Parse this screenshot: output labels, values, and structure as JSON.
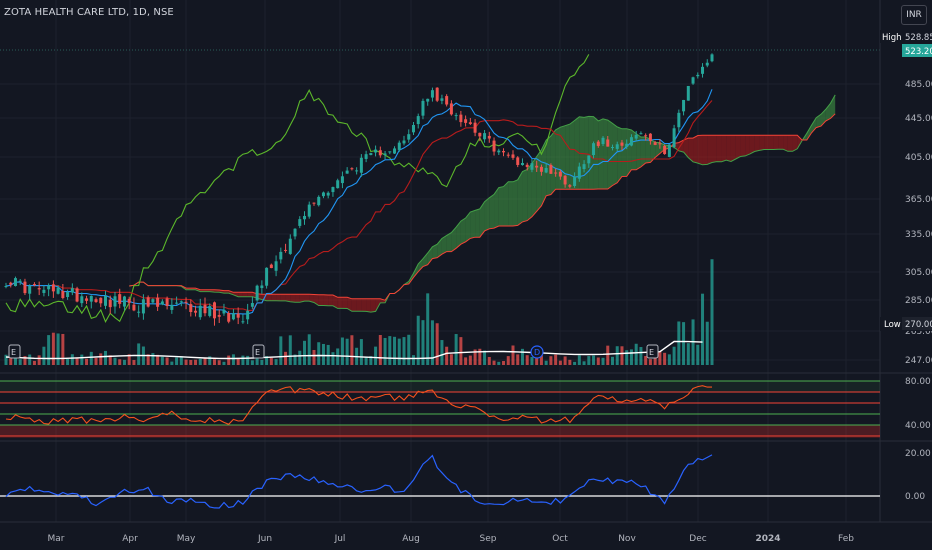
{
  "title": "ZOTA HEALTH CARE LTD, 1D, NSE",
  "currency": "INR",
  "colors": {
    "background": "#131722",
    "up": "#26a69a",
    "down": "#ef5350",
    "tenkan": "#2196f3",
    "kijun": "#b71c1c",
    "chikou": "#5cb82b",
    "span_a": "#43a047",
    "rsi": "#f4511e",
    "macd": "#2962ff"
  },
  "chart_data": [
    {
      "type": "candlestick",
      "title": "ZOTA HEALTH CARE LTD, 1D, NSE",
      "ylim": [
        240,
        540
      ],
      "y_ticks": [
        "485.00",
        "445.00",
        "405.00",
        "365.00",
        "335.00",
        "305.00",
        "285.00",
        "265.00",
        "247.00"
      ],
      "x_ticks": [
        "Mar",
        "Apr",
        "May",
        "Jun",
        "Jul",
        "Aug",
        "Sep",
        "Oct",
        "Nov",
        "Dec",
        "2024",
        "Feb"
      ],
      "price_labels": [
        {
          "label": "High",
          "value": "528.85"
        },
        {
          "label": "",
          "value": "523.20"
        },
        {
          "label": "Low",
          "value": "270.00"
        }
      ],
      "event_markers": [
        "E",
        "E",
        "E",
        "E",
        "D"
      ],
      "close_x": [
        "Feb-15",
        "Feb-25",
        "Mar-05",
        "Mar-15",
        "Mar-25",
        "Apr-05",
        "Apr-15",
        "Apr-25",
        "May-05",
        "May-15",
        "May-25",
        "Jun-05",
        "Jun-15",
        "Jun-25",
        "Jul-05",
        "Jul-15",
        "Jul-25",
        "Aug-05",
        "Aug-15",
        "Aug-25",
        "Sep-05",
        "Sep-15",
        "Sep-25",
        "Oct-05",
        "Oct-15",
        "Oct-25",
        "Nov-05",
        "Nov-15",
        "Nov-25",
        "Dec-01",
        "Dec-06"
      ],
      "close": [
        300,
        293,
        291,
        289,
        287,
        283,
        281,
        281,
        280,
        277,
        274,
        303,
        330,
        361,
        381,
        399,
        412,
        420,
        476,
        452,
        433,
        409,
        399,
        393,
        379,
        421,
        419,
        429,
        409,
        481,
        523
      ],
      "volume_levels": [
        0.15,
        0.1,
        0.3,
        0.1,
        0.15,
        0.1,
        0.2,
        0.1,
        0.1,
        0.1,
        0.1,
        0.1,
        0.3,
        0.3,
        0.3,
        0.3,
        0.3,
        0.3,
        0.8,
        0.3,
        0.2,
        0.1,
        0.2,
        0.1,
        0.1,
        0.1,
        0.2,
        0.2,
        0.2,
        0.6,
        1.0
      ]
    },
    {
      "type": "line",
      "name": "RSI",
      "ylim": [
        20,
        90
      ],
      "y_ticks": [
        "80.00",
        "40.00"
      ],
      "levels": [
        80,
        70,
        60,
        50,
        40,
        30
      ],
      "values": [
        48,
        45,
        43,
        46,
        42,
        47,
        44,
        50,
        46,
        44,
        42,
        68,
        72,
        70,
        67,
        64,
        66,
        64,
        72,
        60,
        55,
        45,
        48,
        43,
        45,
        66,
        62,
        64,
        55,
        70,
        75
      ]
    },
    {
      "type": "line",
      "name": "MACD",
      "ylim": [
        -10,
        25
      ],
      "y_ticks": [
        "20.00",
        "0.00"
      ],
      "values": [
        1,
        3,
        2,
        0,
        -4,
        2,
        3,
        -3,
        -2,
        -5,
        -3,
        6,
        10,
        8,
        5,
        3,
        4,
        2,
        19,
        5,
        -2,
        -3,
        -1,
        -4,
        0,
        8,
        7,
        5,
        -3,
        15,
        20
      ]
    }
  ]
}
